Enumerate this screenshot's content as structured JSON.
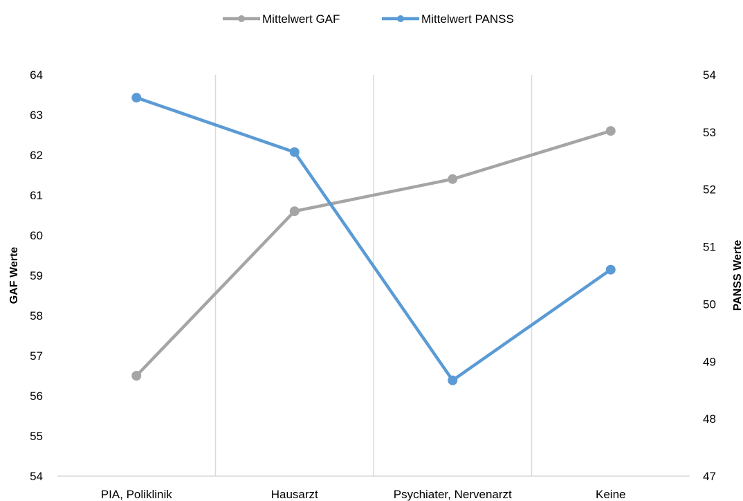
{
  "chart_data": {
    "type": "line",
    "categories": [
      "PIA, Poliklinik",
      "Hausarzt",
      "Psychiater, Nervenarzt",
      "Keine"
    ],
    "series": [
      {
        "name": "Mittelwert GAF",
        "axis": "left",
        "color": "#A5A5A5",
        "values": [
          56.5,
          60.6,
          61.4,
          62.6
        ]
      },
      {
        "name": "Mittelwert PANSS",
        "axis": "right",
        "color": "#5B9BD5",
        "values": [
          53.6,
          52.65,
          48.67,
          50.6
        ]
      }
    ],
    "ylabel_left": "GAF Werte",
    "ylabel_right": "PANSS Werte",
    "ylim_left": [
      54,
      64
    ],
    "ylim_right": [
      47,
      54
    ],
    "yticks_left": [
      "54",
      "55",
      "56",
      "57",
      "58",
      "59",
      "60",
      "61",
      "62",
      "63",
      "64"
    ],
    "yticks_right": [
      "47",
      "48",
      "49",
      "50",
      "51",
      "52",
      "53",
      "54"
    ],
    "grid": "vertical",
    "legend_position": "top"
  }
}
